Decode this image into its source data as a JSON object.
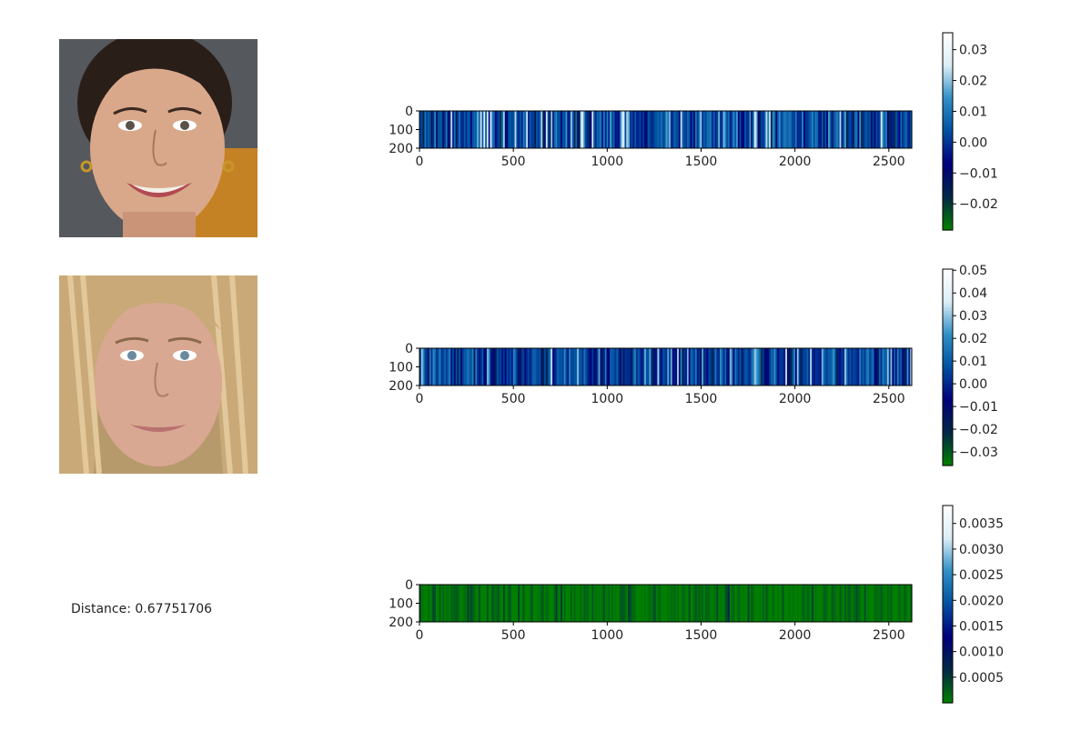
{
  "distance_prefix": "Distance: ",
  "distance_value": "0.67751706",
  "colormap": [
    "#007f00",
    "#002845",
    "#00007a",
    "#0050a0",
    "#2f8fc6",
    "#dcedf6",
    "#ffffff"
  ],
  "faces": [
    {
      "label": "",
      "skin": "#d9a88a",
      "hair": "#2a1e18",
      "bg": "#55585c",
      "lips": "#b24a52"
    },
    {
      "label": "",
      "skin": "#d9a892",
      "hair": "#c9a978",
      "bg": "#b79a6c",
      "lips": "#b9716f"
    }
  ],
  "chart_data": [
    {
      "type": "heatmap",
      "title": "",
      "xlabel": "",
      "ylabel": "",
      "xlim": [
        0,
        2622
      ],
      "ylim": [
        200,
        0
      ],
      "xticks": [
        0,
        500,
        1000,
        1500,
        2000,
        2500
      ],
      "xticklabels": [
        "0",
        "500",
        "1000",
        "1500",
        "2000",
        "2500"
      ],
      "yticks": [
        0,
        100,
        200
      ],
      "yticklabels": [
        "0",
        "100",
        "200"
      ],
      "colorbar": {
        "vmin": -0.0285,
        "vmax": 0.0355,
        "ticks": [
          0.03,
          0.02,
          0.01,
          0.0,
          -0.01,
          -0.02
        ],
        "ticklabels": [
          "0.03",
          "0.02",
          "0.01",
          "0.00",
          "−0.01",
          "−0.02"
        ]
      },
      "values_sample": [
        0.004,
        0.008,
        -0.006,
        0.012,
        0.002,
        -0.01,
        0.018,
        0.001,
        0.006,
        -0.004,
        0.024,
        0.003,
        -0.015,
        0.009,
        0.005,
        -0.002
      ]
    },
    {
      "type": "heatmap",
      "title": "",
      "xlabel": "",
      "ylabel": "",
      "xlim": [
        0,
        2622
      ],
      "ylim": [
        200,
        0
      ],
      "xticks": [
        0,
        500,
        1000,
        1500,
        2000,
        2500
      ],
      "xticklabels": [
        "0",
        "500",
        "1000",
        "1500",
        "2000",
        "2500"
      ],
      "yticks": [
        0,
        100,
        200
      ],
      "yticklabels": [
        "0",
        "100",
        "200"
      ],
      "colorbar": {
        "vmin": -0.036,
        "vmax": 0.0505,
        "ticks": [
          0.05,
          0.04,
          0.03,
          0.02,
          0.01,
          0.0,
          -0.01,
          -0.02,
          -0.03
        ],
        "ticklabels": [
          "0.05",
          "0.04",
          "0.03",
          "0.02",
          "0.01",
          "0.00",
          "−0.01",
          "−0.02",
          "−0.03"
        ]
      },
      "values_sample": [
        0.006,
        -0.003,
        0.01,
        0.002,
        -0.012,
        0.015,
        0.004,
        -0.006,
        0.021,
        0.001,
        0.008,
        -0.018,
        0.003,
        0.012,
        -0.001,
        0.03
      ]
    },
    {
      "type": "heatmap",
      "title": "",
      "xlabel": "",
      "ylabel": "",
      "xlim": [
        0,
        2622
      ],
      "ylim": [
        200,
        0
      ],
      "xticks": [
        0,
        500,
        1000,
        1500,
        2000,
        2500
      ],
      "xticklabels": [
        "0",
        "500",
        "1000",
        "1500",
        "2000",
        "2500"
      ],
      "yticks": [
        0,
        100,
        200
      ],
      "yticklabels": [
        "0",
        "100",
        "200"
      ],
      "colorbar": {
        "vmin": 0.0,
        "vmax": 0.00385,
        "ticks": [
          0.0035,
          0.003,
          0.0025,
          0.002,
          0.0015,
          0.001,
          0.0005
        ],
        "ticklabels": [
          "0.0035",
          "0.0030",
          "0.0025",
          "0.0020",
          "0.0015",
          "0.0010",
          "0.0005"
        ]
      },
      "values_sample": [
        2e-05,
        8e-05,
        1e-05,
        0.00015,
        4e-05,
        0.0003,
        6e-05,
        3e-05,
        0.00012,
        1e-05,
        0.00045,
        5e-05,
        2e-05,
        0.0002,
        7e-05,
        1e-05
      ]
    }
  ]
}
